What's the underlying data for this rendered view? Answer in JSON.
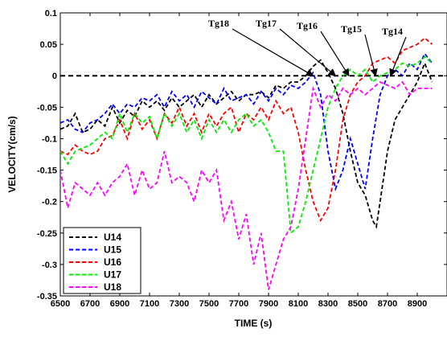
{
  "chart_data": {
    "type": "line",
    "xlabel": "TIME (s)",
    "ylabel": "VELOCITY(cm/s)",
    "xlim": [
      6500,
      9000
    ],
    "ylim": [
      -0.35,
      0.1
    ],
    "xticks": [
      "6500",
      "6700",
      "6900",
      "7100",
      "7300",
      "7500",
      "7700",
      "7900",
      "8100",
      "8300",
      "8500",
      "8700",
      "8900"
    ],
    "yticks": [
      "0.1",
      "0.05",
      "0",
      "-0.05",
      "-0.1",
      "-0.15",
      "-0.2",
      "-0.25",
      "-0.3",
      "-0.35"
    ],
    "legend_position": "bottom-left",
    "series": [
      {
        "name": "U14",
        "color": "#000000",
        "x": [
          6500,
          6550,
          6600,
          6650,
          6700,
          6750,
          6800,
          6850,
          6900,
          6950,
          7000,
          7050,
          7100,
          7150,
          7200,
          7250,
          7300,
          7350,
          7400,
          7450,
          7500,
          7550,
          7600,
          7650,
          7700,
          7750,
          7800,
          7850,
          7900,
          7950,
          8000,
          8050,
          8100,
          8150,
          8200,
          8250,
          8300,
          8350,
          8400,
          8450,
          8500,
          8550,
          8600,
          8625,
          8650,
          8700,
          8750,
          8800,
          8850,
          8900,
          8950,
          9000
        ],
        "values": [
          -0.085,
          -0.08,
          -0.06,
          -0.09,
          -0.085,
          -0.07,
          -0.08,
          -0.05,
          -0.075,
          -0.055,
          -0.065,
          -0.04,
          -0.05,
          -0.04,
          -0.055,
          -0.035,
          -0.05,
          -0.04,
          -0.03,
          -0.05,
          -0.03,
          -0.045,
          -0.035,
          -0.025,
          -0.04,
          -0.03,
          -0.03,
          -0.025,
          -0.035,
          -0.015,
          -0.02,
          -0.01,
          -0.01,
          0.0,
          0.015,
          0.025,
          0.005,
          -0.02,
          -0.06,
          -0.12,
          -0.17,
          -0.19,
          -0.23,
          -0.24,
          -0.2,
          -0.12,
          -0.07,
          -0.05,
          -0.03,
          -0.01,
          0.02,
          -0.01
        ]
      },
      {
        "name": "U15",
        "color": "#0000ff",
        "x": [
          6500,
          6550,
          6600,
          6650,
          6700,
          6750,
          6800,
          6850,
          6900,
          6950,
          7000,
          7050,
          7100,
          7150,
          7200,
          7250,
          7300,
          7350,
          7400,
          7450,
          7500,
          7550,
          7600,
          7650,
          7700,
          7750,
          7800,
          7850,
          7900,
          7950,
          8000,
          8050,
          8100,
          8150,
          8200,
          8250,
          8300,
          8350,
          8400,
          8450,
          8500,
          8550,
          8600,
          8650,
          8700,
          8750,
          8800,
          8850,
          8900,
          8950,
          9000
        ],
        "values": [
          -0.075,
          -0.07,
          -0.085,
          -0.09,
          -0.075,
          -0.07,
          -0.06,
          -0.045,
          -0.06,
          -0.045,
          -0.05,
          -0.035,
          -0.04,
          -0.03,
          -0.05,
          -0.025,
          -0.04,
          -0.03,
          -0.05,
          -0.025,
          -0.035,
          -0.045,
          -0.02,
          -0.04,
          -0.035,
          -0.03,
          -0.045,
          -0.025,
          -0.04,
          -0.02,
          -0.03,
          -0.015,
          -0.02,
          -0.01,
          0.005,
          -0.03,
          -0.12,
          -0.18,
          -0.15,
          -0.1,
          -0.14,
          -0.18,
          -0.1,
          -0.03,
          0.0,
          0.01,
          0.0,
          0.02,
          0.01,
          0.035,
          0.02
        ]
      },
      {
        "name": "U16",
        "color": "#ff0000",
        "x": [
          6500,
          6550,
          6600,
          6650,
          6700,
          6750,
          6800,
          6850,
          6900,
          6950,
          7000,
          7050,
          7100,
          7150,
          7200,
          7250,
          7300,
          7350,
          7400,
          7450,
          7500,
          7550,
          7600,
          7650,
          7700,
          7750,
          7800,
          7850,
          7900,
          7950,
          8000,
          8050,
          8100,
          8150,
          8200,
          8250,
          8300,
          8350,
          8400,
          8450,
          8500,
          8550,
          8600,
          8650,
          8700,
          8750,
          8800,
          8850,
          8900,
          8950,
          9000
        ],
        "values": [
          -0.12,
          -0.125,
          -0.11,
          -0.12,
          -0.125,
          -0.12,
          -0.1,
          -0.095,
          -0.07,
          -0.1,
          -0.06,
          -0.085,
          -0.07,
          -0.1,
          -0.06,
          -0.075,
          -0.05,
          -0.08,
          -0.06,
          -0.09,
          -0.06,
          -0.08,
          -0.06,
          -0.05,
          -0.09,
          -0.06,
          -0.07,
          -0.05,
          -0.07,
          -0.04,
          -0.06,
          -0.05,
          -0.09,
          -0.15,
          -0.2,
          -0.23,
          -0.21,
          -0.15,
          -0.07,
          -0.03,
          -0.01,
          0.0,
          0.02,
          0.025,
          0.03,
          0.02,
          0.04,
          0.045,
          0.05,
          0.06,
          0.05
        ]
      },
      {
        "name": "U17",
        "color": "#00ee00",
        "x": [
          6500,
          6550,
          6600,
          6650,
          6700,
          6750,
          6800,
          6850,
          6900,
          6950,
          7000,
          7050,
          7100,
          7150,
          7200,
          7250,
          7300,
          7350,
          7400,
          7450,
          7500,
          7550,
          7600,
          7650,
          7700,
          7750,
          7800,
          7850,
          7900,
          7950,
          8000,
          8050,
          8100,
          8150,
          8200,
          8250,
          8300,
          8350,
          8400,
          8450,
          8500,
          8550,
          8600,
          8650,
          8700,
          8750,
          8800,
          8850,
          8900,
          8950,
          9000
        ],
        "values": [
          -0.12,
          -0.14,
          -0.12,
          -0.115,
          -0.11,
          -0.1,
          -0.09,
          -0.1,
          -0.06,
          -0.09,
          -0.06,
          -0.075,
          -0.065,
          -0.1,
          -0.06,
          -0.08,
          -0.06,
          -0.09,
          -0.07,
          -0.1,
          -0.07,
          -0.09,
          -0.07,
          -0.09,
          -0.07,
          -0.06,
          -0.08,
          -0.07,
          -0.09,
          -0.12,
          -0.12,
          -0.25,
          -0.24,
          -0.2,
          -0.15,
          -0.1,
          -0.05,
          -0.02,
          0.0,
          0.01,
          0.0,
          0.01,
          -0.01,
          0.0,
          0.005,
          0.01,
          0.02,
          0.015,
          0.02,
          0.03,
          0.02
        ]
      },
      {
        "name": "U18",
        "color": "#ff00ff",
        "x": [
          6500,
          6550,
          6600,
          6650,
          6700,
          6750,
          6800,
          6850,
          6900,
          6950,
          7000,
          7050,
          7100,
          7150,
          7200,
          7250,
          7300,
          7350,
          7400,
          7450,
          7500,
          7550,
          7600,
          7650,
          7700,
          7750,
          7800,
          7850,
          7900,
          7950,
          8000,
          8050,
          8100,
          8150,
          8200,
          8250,
          8300,
          8350,
          8400,
          8450,
          8500,
          8550,
          8600,
          8650,
          8700,
          8750,
          8800,
          8850,
          8900,
          8950,
          9000
        ],
        "values": [
          -0.15,
          -0.21,
          -0.17,
          -0.18,
          -0.19,
          -0.17,
          -0.19,
          -0.17,
          -0.16,
          -0.14,
          -0.19,
          -0.15,
          -0.18,
          -0.17,
          -0.12,
          -0.17,
          -0.16,
          -0.17,
          -0.2,
          -0.15,
          -0.17,
          -0.15,
          -0.23,
          -0.2,
          -0.26,
          -0.22,
          -0.3,
          -0.25,
          -0.34,
          -0.3,
          -0.26,
          -0.24,
          -0.18,
          -0.1,
          -0.02,
          -0.05,
          -0.03,
          -0.04,
          -0.02,
          -0.03,
          -0.02,
          -0.03,
          -0.02,
          -0.01,
          -0.015,
          -0.02,
          -0.01,
          -0.03,
          -0.02,
          -0.02,
          -0.02
        ]
      }
    ],
    "reference_line": {
      "y": 0,
      "color": "#000000",
      "style": "dashed"
    },
    "annotations": [
      {
        "text": "Tg18",
        "points_to": [
          8200,
          0
        ]
      },
      {
        "text": "Tg17",
        "points_to": [
          8350,
          0
        ]
      },
      {
        "text": "Tg16",
        "points_to": [
          8440,
          0
        ]
      },
      {
        "text": "Tg15",
        "points_to": [
          8620,
          0
        ]
      },
      {
        "text": "Tg14",
        "points_to": [
          8720,
          0
        ]
      }
    ]
  }
}
